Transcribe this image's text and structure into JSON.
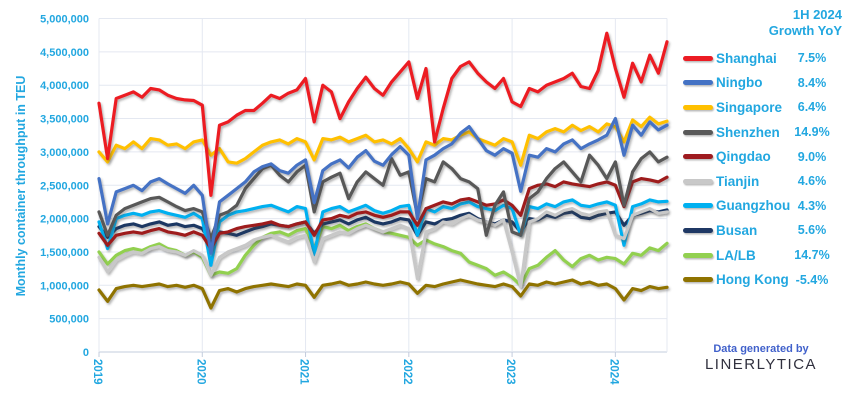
{
  "colors": {
    "axis_text": "#22A7E0",
    "grid": "#E4E8F1",
    "axis_line": "#C3CCDD",
    "credit_text": "#4161CB",
    "brand_text": "#30303E",
    "background": "#FFFFFF"
  },
  "legend": {
    "header_line1": "1H 2024",
    "header_line2": "Growth YoY"
  },
  "footer": {
    "credit_line": "Data generated by",
    "brand": "LINERLYTICA"
  },
  "chart_data": {
    "type": "line",
    "title": "",
    "xlabel": "",
    "ylabel": "Monthly container throughput in TEU",
    "units": "values in million TEU per month",
    "ylim": [
      0,
      5000000
    ],
    "y_tick_step": 500000,
    "grid": true,
    "legend_position": "right",
    "y_tick_labels": [
      "0",
      "500,000",
      "1,000,000",
      "1,500,000",
      "2,000,000",
      "2,500,000",
      "3,000,000",
      "3,500,000",
      "4,000,000",
      "4,500,000",
      "5,000,000"
    ],
    "x_tick_labels": [
      "2019",
      "2020",
      "2021",
      "2022",
      "2023",
      "2024"
    ],
    "months": [
      "2019-01",
      "2019-02",
      "2019-03",
      "2019-04",
      "2019-05",
      "2019-06",
      "2019-07",
      "2019-08",
      "2019-09",
      "2019-10",
      "2019-11",
      "2019-12",
      "2020-01",
      "2020-02",
      "2020-03",
      "2020-04",
      "2020-05",
      "2020-06",
      "2020-07",
      "2020-08",
      "2020-09",
      "2020-10",
      "2020-11",
      "2020-12",
      "2021-01",
      "2021-02",
      "2021-03",
      "2021-04",
      "2021-05",
      "2021-06",
      "2021-07",
      "2021-08",
      "2021-09",
      "2021-10",
      "2021-11",
      "2021-12",
      "2022-01",
      "2022-02",
      "2022-03",
      "2022-04",
      "2022-05",
      "2022-06",
      "2022-07",
      "2022-08",
      "2022-09",
      "2022-10",
      "2022-11",
      "2022-12",
      "2023-01",
      "2023-02",
      "2023-03",
      "2023-04",
      "2023-05",
      "2023-06",
      "2023-07",
      "2023-08",
      "2023-09",
      "2023-10",
      "2023-11",
      "2023-12",
      "2024-01",
      "2024-02",
      "2024-03",
      "2024-04",
      "2024-05",
      "2024-06",
      "2024-07"
    ],
    "series": [
      {
        "name": "Shanghai",
        "color": "#EC1C24",
        "growth_1h2024_yoy": "7.5%",
        "values": [
          3.73,
          2.9,
          3.8,
          3.85,
          3.9,
          3.82,
          3.95,
          3.93,
          3.85,
          3.8,
          3.78,
          3.77,
          3.7,
          2.35,
          3.4,
          3.45,
          3.55,
          3.62,
          3.62,
          3.73,
          3.85,
          3.8,
          3.88,
          3.93,
          4.1,
          3.45,
          4.0,
          3.9,
          3.5,
          3.75,
          3.95,
          4.12,
          3.95,
          3.85,
          4.05,
          4.2,
          4.35,
          3.8,
          4.25,
          3.15,
          3.65,
          4.1,
          4.28,
          4.35,
          4.18,
          4.05,
          3.95,
          4.1,
          3.75,
          3.68,
          3.95,
          3.9,
          4.0,
          4.05,
          4.1,
          4.18,
          3.98,
          3.95,
          4.22,
          4.78,
          4.25,
          3.82,
          4.33,
          4.05,
          4.45,
          4.18,
          4.65
        ]
      },
      {
        "name": "Ningbo",
        "color": "#4472C4",
        "growth_1h2024_yoy": "8.4%",
        "values": [
          2.6,
          1.92,
          2.4,
          2.45,
          2.5,
          2.42,
          2.55,
          2.6,
          2.52,
          2.45,
          2.38,
          2.5,
          2.35,
          1.48,
          2.25,
          2.35,
          2.45,
          2.55,
          2.7,
          2.78,
          2.82,
          2.72,
          2.68,
          2.8,
          2.88,
          2.24,
          2.72,
          2.82,
          2.88,
          2.76,
          2.92,
          3.02,
          2.86,
          2.8,
          2.96,
          3.08,
          2.95,
          2.0,
          2.88,
          2.95,
          3.05,
          3.12,
          3.28,
          3.38,
          3.2,
          3.02,
          2.95,
          3.05,
          2.98,
          2.41,
          2.95,
          2.92,
          3.05,
          3.0,
          3.12,
          3.18,
          3.05,
          3.12,
          3.18,
          3.25,
          3.5,
          2.95,
          3.4,
          3.25,
          3.45,
          3.33,
          3.4
        ]
      },
      {
        "name": "Singapore",
        "color": "#FFC000",
        "growth_1h2024_yoy": "6.4%",
        "values": [
          3.0,
          2.85,
          3.1,
          3.05,
          3.15,
          3.05,
          3.2,
          3.18,
          3.1,
          3.12,
          3.05,
          3.15,
          3.18,
          2.95,
          3.05,
          2.85,
          2.83,
          2.9,
          3.0,
          3.1,
          3.15,
          3.18,
          3.12,
          3.2,
          3.15,
          2.88,
          3.2,
          3.18,
          3.22,
          3.15,
          3.2,
          3.25,
          3.15,
          3.18,
          3.12,
          3.2,
          3.05,
          2.85,
          3.15,
          3.1,
          3.2,
          3.18,
          3.25,
          3.3,
          3.2,
          3.15,
          3.1,
          3.2,
          3.15,
          2.8,
          3.25,
          3.2,
          3.3,
          3.35,
          3.3,
          3.4,
          3.32,
          3.38,
          3.3,
          3.42,
          3.38,
          3.15,
          3.48,
          3.38,
          3.52,
          3.42,
          3.46
        ]
      },
      {
        "name": "Shenzhen",
        "color": "#595959",
        "growth_1h2024_yoy": "14.9%",
        "values": [
          2.1,
          1.75,
          2.05,
          2.15,
          2.2,
          2.25,
          2.3,
          2.32,
          2.25,
          2.18,
          2.12,
          2.15,
          2.1,
          1.7,
          2.05,
          2.1,
          2.2,
          2.45,
          2.6,
          2.75,
          2.8,
          2.65,
          2.55,
          2.7,
          2.8,
          2.1,
          2.55,
          2.62,
          2.68,
          2.3,
          2.55,
          2.7,
          2.6,
          2.5,
          2.9,
          2.65,
          2.7,
          2.05,
          2.6,
          2.55,
          2.85,
          2.75,
          2.6,
          2.55,
          2.45,
          1.75,
          2.2,
          2.4,
          1.8,
          1.75,
          2.3,
          2.4,
          2.6,
          2.75,
          2.85,
          2.7,
          2.55,
          2.95,
          2.8,
          2.6,
          2.85,
          2.2,
          2.7,
          2.9,
          3.0,
          2.85,
          2.92
        ]
      },
      {
        "name": "Qingdao",
        "color": "#9E1B1F",
        "growth_1h2024_yoy": "9.0%",
        "values": [
          1.78,
          1.6,
          1.75,
          1.78,
          1.8,
          1.78,
          1.82,
          1.85,
          1.8,
          1.78,
          1.75,
          1.8,
          1.75,
          1.55,
          1.78,
          1.8,
          1.85,
          1.88,
          1.9,
          1.92,
          1.95,
          1.9,
          1.88,
          1.92,
          1.95,
          1.75,
          1.98,
          2.0,
          2.05,
          2.02,
          2.08,
          2.1,
          2.05,
          2.02,
          2.05,
          2.1,
          2.1,
          1.9,
          2.15,
          2.2,
          2.25,
          2.22,
          2.28,
          2.3,
          2.25,
          2.2,
          2.22,
          2.28,
          2.2,
          2.05,
          2.45,
          2.5,
          2.52,
          2.48,
          2.55,
          2.52,
          2.5,
          2.48,
          2.52,
          2.55,
          2.5,
          2.18,
          2.55,
          2.6,
          2.58,
          2.55,
          2.62
        ]
      },
      {
        "name": "Tianjin",
        "color": "#C8C8C8",
        "growth_1h2024_yoy": "4.6%",
        "values": [
          1.42,
          1.2,
          1.38,
          1.45,
          1.5,
          1.48,
          1.55,
          1.58,
          1.52,
          1.5,
          1.45,
          1.52,
          1.45,
          1.15,
          1.42,
          1.5,
          1.55,
          1.6,
          1.68,
          1.72,
          1.75,
          1.7,
          1.65,
          1.72,
          1.75,
          1.35,
          1.7,
          1.75,
          1.8,
          1.78,
          1.85,
          1.9,
          1.85,
          1.8,
          1.85,
          1.9,
          1.85,
          1.1,
          1.8,
          1.85,
          1.95,
          1.92,
          2.0,
          2.05,
          1.98,
          1.95,
          1.9,
          1.98,
          1.5,
          0.98,
          1.95,
          2.0,
          2.1,
          2.05,
          2.12,
          2.15,
          2.08,
          2.05,
          2.1,
          2.12,
          1.75,
          1.7,
          2.05,
          2.1,
          2.15,
          2.08,
          2.1
        ]
      },
      {
        "name": "Guangzhou",
        "color": "#00B0F0",
        "growth_1h2024_yoy": "4.3%",
        "values": [
          1.95,
          1.55,
          2.0,
          2.05,
          2.08,
          2.05,
          2.1,
          2.12,
          2.08,
          2.05,
          2.02,
          2.08,
          2.0,
          1.3,
          1.95,
          2.05,
          2.1,
          2.12,
          2.15,
          2.18,
          2.2,
          2.15,
          2.1,
          2.18,
          2.15,
          1.46,
          2.1,
          2.15,
          2.18,
          2.1,
          2.15,
          2.2,
          2.12,
          2.08,
          2.12,
          2.18,
          2.2,
          1.75,
          2.15,
          2.1,
          2.18,
          2.15,
          2.22,
          2.25,
          2.18,
          2.15,
          2.12,
          2.2,
          2.15,
          1.75,
          2.18,
          2.15,
          2.22,
          2.18,
          2.25,
          2.28,
          2.2,
          2.18,
          2.22,
          2.25,
          2.2,
          1.6,
          2.18,
          2.22,
          2.28,
          2.25,
          2.26
        ]
      },
      {
        "name": "Busan",
        "color": "#1F3864",
        "growth_1h2024_yoy": "5.6%",
        "values": [
          1.88,
          1.72,
          1.85,
          1.9,
          1.92,
          1.88,
          1.92,
          1.95,
          1.9,
          1.92,
          1.88,
          1.9,
          1.85,
          1.65,
          1.8,
          1.78,
          1.75,
          1.8,
          1.85,
          1.88,
          1.92,
          1.9,
          1.88,
          1.92,
          1.95,
          1.78,
          1.92,
          1.95,
          1.98,
          1.92,
          1.98,
          2.02,
          1.95,
          1.92,
          1.95,
          2.0,
          1.98,
          1.75,
          1.95,
          1.92,
          1.98,
          2.0,
          2.05,
          2.08,
          2.0,
          1.95,
          1.92,
          1.98,
          1.95,
          1.8,
          2.0,
          1.98,
          2.05,
          2.02,
          2.08,
          2.1,
          2.02,
          2.0,
          2.05,
          2.08,
          2.1,
          1.9,
          2.05,
          2.08,
          2.12,
          2.1,
          2.13
        ]
      },
      {
        "name": "LA/LB",
        "color": "#92D050",
        "growth_1h2024_yoy": "14.7%",
        "values": [
          1.5,
          1.32,
          1.45,
          1.52,
          1.55,
          1.52,
          1.58,
          1.62,
          1.55,
          1.52,
          1.45,
          1.5,
          1.42,
          1.15,
          1.2,
          1.18,
          1.25,
          1.45,
          1.6,
          1.72,
          1.78,
          1.8,
          1.75,
          1.82,
          1.85,
          1.55,
          1.88,
          1.85,
          1.9,
          1.82,
          1.88,
          1.92,
          1.85,
          1.8,
          1.78,
          1.75,
          1.72,
          1.6,
          1.68,
          1.62,
          1.58,
          1.52,
          1.48,
          1.35,
          1.3,
          1.25,
          1.15,
          1.2,
          1.12,
          1.0,
          1.25,
          1.3,
          1.42,
          1.52,
          1.38,
          1.28,
          1.4,
          1.45,
          1.38,
          1.42,
          1.4,
          1.32,
          1.48,
          1.45,
          1.56,
          1.52,
          1.63
        ]
      },
      {
        "name": "Hong Kong",
        "color": "#8F7300",
        "growth_1h2024_yoy": "-5.4%",
        "values": [
          0.93,
          0.76,
          0.95,
          0.98,
          1.0,
          0.98,
          1.0,
          1.02,
          0.98,
          1.0,
          0.97,
          1.0,
          0.95,
          0.66,
          0.92,
          0.95,
          0.9,
          0.95,
          0.98,
          1.0,
          1.02,
          1.0,
          0.98,
          1.02,
          1.0,
          0.82,
          1.0,
          1.02,
          1.05,
          1.0,
          1.02,
          1.05,
          1.02,
          1.0,
          1.02,
          1.05,
          1.02,
          0.88,
          1.0,
          0.98,
          1.02,
          1.05,
          1.08,
          1.05,
          1.02,
          1.0,
          0.98,
          1.02,
          0.98,
          0.84,
          1.02,
          1.0,
          1.05,
          1.02,
          1.05,
          1.08,
          1.02,
          1.05,
          1.0,
          1.02,
          0.95,
          0.78,
          0.95,
          0.92,
          0.98,
          0.95,
          0.97
        ]
      }
    ]
  }
}
